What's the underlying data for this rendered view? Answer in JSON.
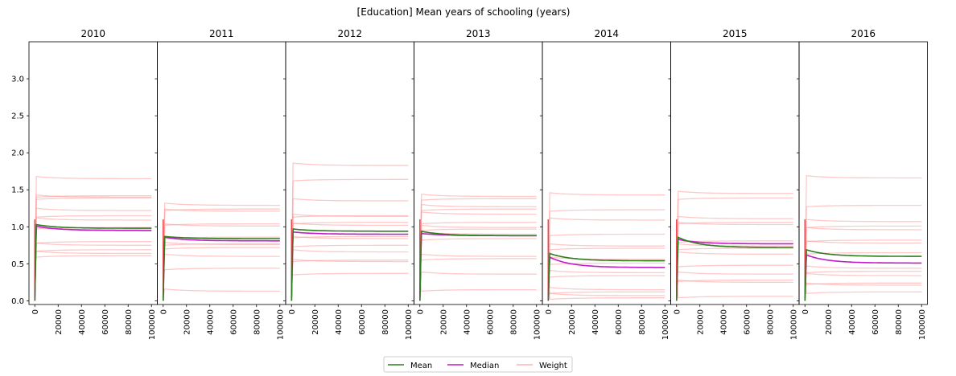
{
  "page_title": "[Education] Mean years of schooling (years)",
  "legend": {
    "mean_label": "Mean",
    "median_label": "Median",
    "weight_label": "Weight"
  },
  "colors": {
    "mean": "#2e7d1f",
    "median": "#c21cc9",
    "weight": "#ff9c9c",
    "weight_dark": "#e8202c",
    "frame": "#000000"
  },
  "chart_data": {
    "type": "line",
    "title": "[Education] Mean years of schooling (years)",
    "ylim": [
      -0.05,
      3.5
    ],
    "xlim": [
      -5000,
      105000
    ],
    "yticks": [
      "0.0",
      "0.5",
      "1.0",
      "1.5",
      "2.0",
      "2.5",
      "3.0"
    ],
    "xticks": [
      "0",
      "20000",
      "40000",
      "60000",
      "80000",
      "100000"
    ],
    "grid": false,
    "legend_position": "bottom-center",
    "panels": [
      {
        "title": "2010",
        "mean": 0.98,
        "mean_peak": 1.03,
        "median": 0.95,
        "median_peak": 1.01,
        "weights": [
          1.65,
          1.42,
          1.4,
          1.39,
          1.22,
          1.15,
          1.09,
          0.99,
          0.96,
          0.8,
          0.75,
          0.69,
          0.64,
          0.61
        ]
      },
      {
        "title": "2011",
        "mean": 0.84,
        "mean_peak": 0.87,
        "median": 0.81,
        "median_peak": 0.86,
        "weights": [
          1.29,
          1.24,
          1.21,
          1.04,
          1.01,
          0.86,
          0.84,
          0.77,
          0.76,
          0.72,
          0.6,
          0.44,
          0.13
        ]
      },
      {
        "title": "2012",
        "mean": 0.94,
        "mean_peak": 0.97,
        "median": 0.9,
        "median_peak": 0.93,
        "weights": [
          1.83,
          1.64,
          1.35,
          1.15,
          1.14,
          1.06,
          1.02,
          0.87,
          0.84,
          0.75,
          0.66,
          0.55,
          0.53,
          0.37
        ]
      },
      {
        "title": "2013",
        "mean": 0.88,
        "mean_peak": 0.94,
        "median": 0.88,
        "median_peak": 0.91,
        "weights": [
          1.41,
          1.38,
          1.27,
          1.24,
          1.17,
          1.06,
          0.99,
          0.97,
          0.9,
          0.84,
          0.6,
          0.57,
          0.36,
          0.15
        ]
      },
      {
        "title": "2014",
        "mean": 0.54,
        "mean_peak": 0.64,
        "median": 0.45,
        "median_peak": 0.59,
        "weights": [
          1.43,
          1.23,
          1.09,
          0.9,
          0.74,
          0.71,
          0.56,
          0.51,
          0.38,
          0.34,
          0.15,
          0.12,
          0.07,
          0.04
        ]
      },
      {
        "title": "2015",
        "mean": 0.72,
        "mean_peak": 0.86,
        "median": 0.77,
        "median_peak": 0.83,
        "weights": [
          1.45,
          1.39,
          1.11,
          1.06,
          1.03,
          0.81,
          0.74,
          0.71,
          0.63,
          0.48,
          0.36,
          0.28,
          0.25,
          0.06
        ]
      },
      {
        "title": "2016",
        "mean": 0.6,
        "mean_peak": 0.69,
        "median": 0.51,
        "median_peak": 0.62,
        "weights": [
          1.66,
          1.29,
          1.07,
          1.01,
          0.96,
          0.82,
          0.78,
          0.65,
          0.44,
          0.4,
          0.34,
          0.24,
          0.21,
          0.12
        ]
      }
    ]
  }
}
